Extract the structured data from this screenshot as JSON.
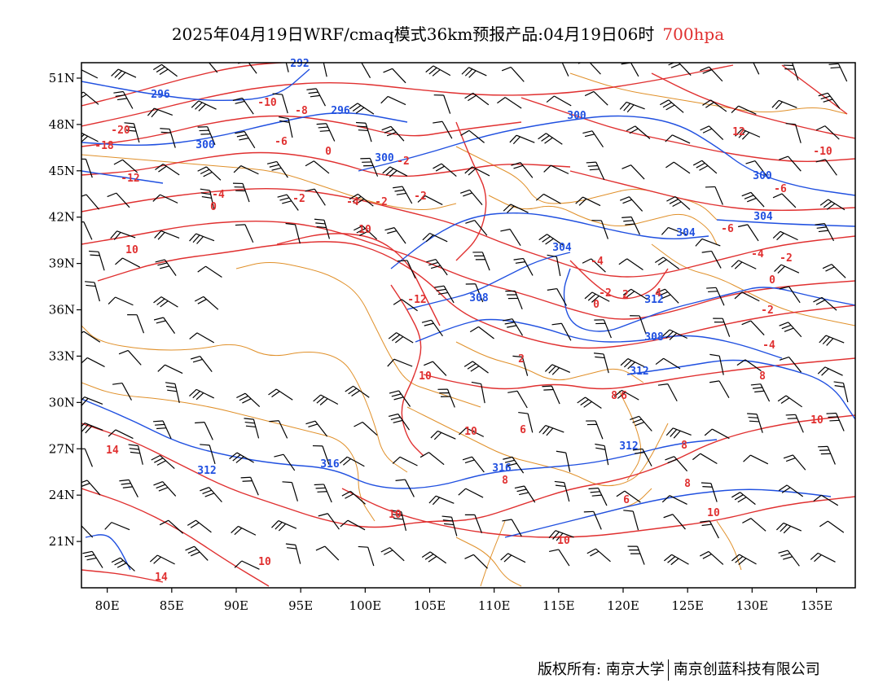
{
  "header": {
    "title": "2025年04月19日WRF/cmaq模式36km预报产品:04月19日06时",
    "level": "700hpa"
  },
  "map": {
    "lat_labels": [
      "51N",
      "48N",
      "45N",
      "42N",
      "39N",
      "36N",
      "33N",
      "30N",
      "27N",
      "24N",
      "21N"
    ],
    "lon_labels": [
      "80E",
      "85E",
      "90E",
      "95E",
      "100E",
      "105E",
      "110E",
      "115E",
      "120E",
      "125E",
      "130E",
      "135E"
    ],
    "lon_range": [
      78,
      138
    ],
    "lat_range": [
      18,
      52
    ],
    "colors": {
      "height": "#2050e0",
      "temperature": "#e03030",
      "border": "#e0902a",
      "barb": "#000000"
    },
    "height_labels": [
      "292",
      "296",
      "296",
      "300",
      "300",
      "300",
      "300",
      "304",
      "304",
      "304",
      "308",
      "308",
      "312",
      "312",
      "312",
      "312",
      "316",
      "316"
    ],
    "temperature_labels": [
      "-20",
      "-18",
      "-12",
      "-10",
      "-8",
      "-6",
      "-4",
      "-2",
      "-2",
      "0",
      "0",
      "-4",
      "-2",
      "-2",
      "-12",
      "0",
      "-2",
      "-4",
      "2",
      "-6",
      "-4",
      "-6",
      "-2",
      "-2",
      "0",
      "12",
      "-10",
      "2",
      "4",
      "-4",
      "8",
      "8",
      "10",
      "10",
      "6",
      "10",
      "8",
      "8",
      "6",
      "6",
      "10",
      "14",
      "14",
      "10",
      "10",
      "8",
      "10",
      "10",
      "10"
    ]
  },
  "footer": {
    "left": "版权所有: 南京大学",
    "right": "南京创蓝科技有限公司"
  }
}
